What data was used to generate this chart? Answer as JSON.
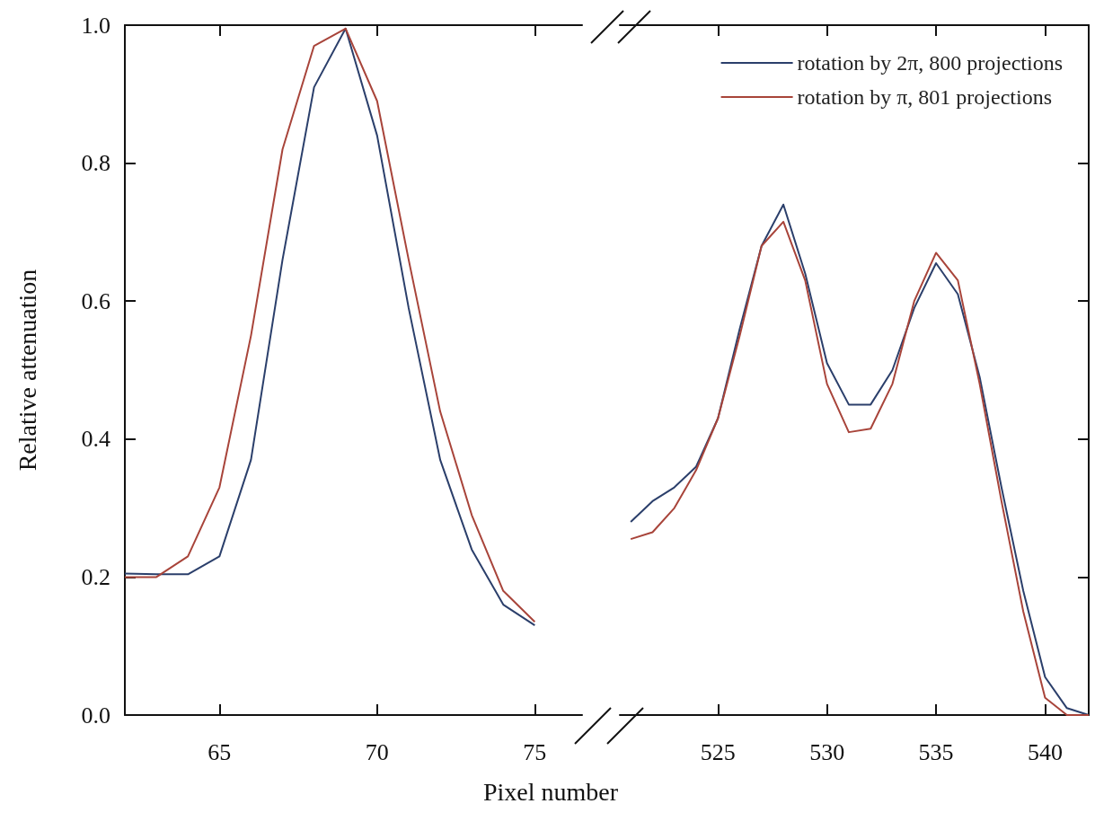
{
  "chart_data": [
    {
      "type": "line",
      "ylabel": "Relative attenuation",
      "xlabel": "Pixel number",
      "x": [
        62,
        63,
        64,
        65,
        66,
        67,
        68,
        69,
        70,
        71,
        72,
        73,
        74,
        75
      ],
      "xlim": [
        62,
        76.5
      ],
      "xticks": [
        65,
        70,
        75
      ],
      "ylim": [
        0,
        1
      ],
      "yticks": [
        {
          "value": 0,
          "label": "0.0"
        },
        0.2,
        0.4,
        0.6,
        0.8,
        {
          "value": 1,
          "label": "1.0"
        }
      ],
      "series": [
        {
          "color": "#2b3f6b",
          "values": [
            0.205,
            0.204,
            0.204,
            0.23,
            0.37,
            0.66,
            0.91,
            0.995,
            0.84,
            0.59,
            0.37,
            0.24,
            0.16,
            0.13
          ]
        },
        {
          "color": "#a8443a",
          "values": [
            0.2,
            0.2,
            0.23,
            0.33,
            0.55,
            0.82,
            0.97,
            0.995,
            0.89,
            0.66,
            0.44,
            0.29,
            0.18,
            0.135
          ]
        }
      ]
    },
    {
      "type": "line",
      "x": [
        521,
        522,
        523,
        524,
        525,
        526,
        527,
        528,
        529,
        530,
        531,
        532,
        533,
        534,
        535,
        536,
        537,
        538,
        539,
        540,
        541,
        542
      ],
      "xlim": [
        520.5,
        542
      ],
      "xticks": [
        525,
        530,
        535,
        540
      ],
      "ylim": [
        0,
        1
      ],
      "yticks": [
        {
          "value": 0,
          "label": null
        },
        {
          "value": 0.2,
          "label": null
        },
        {
          "value": 0.4,
          "label": null
        },
        {
          "value": 0.6,
          "label": null
        },
        {
          "value": 0.8,
          "label": null
        },
        {
          "value": 1,
          "label": null
        }
      ],
      "tick_labels": "x",
      "legend": "top right",
      "series": [
        {
          "name": "rotation by 2π, 800 projections",
          "color": "#2b3f6b",
          "values": [
            0.28,
            0.31,
            0.33,
            0.36,
            0.43,
            0.56,
            0.68,
            0.74,
            0.64,
            0.51,
            0.45,
            0.45,
            0.5,
            0.59,
            0.655,
            0.61,
            0.49,
            0.33,
            0.18,
            0.055,
            0.01,
            0
          ]
        },
        {
          "name": "rotation by π, 801 projections",
          "color": "#a8443a",
          "values": [
            0.255,
            0.265,
            0.3,
            0.355,
            0.43,
            0.55,
            0.68,
            0.715,
            0.63,
            0.48,
            0.41,
            0.415,
            0.48,
            0.6,
            0.67,
            0.63,
            0.48,
            0.31,
            0.15,
            0.025,
            0,
            0
          ]
        }
      ]
    }
  ]
}
